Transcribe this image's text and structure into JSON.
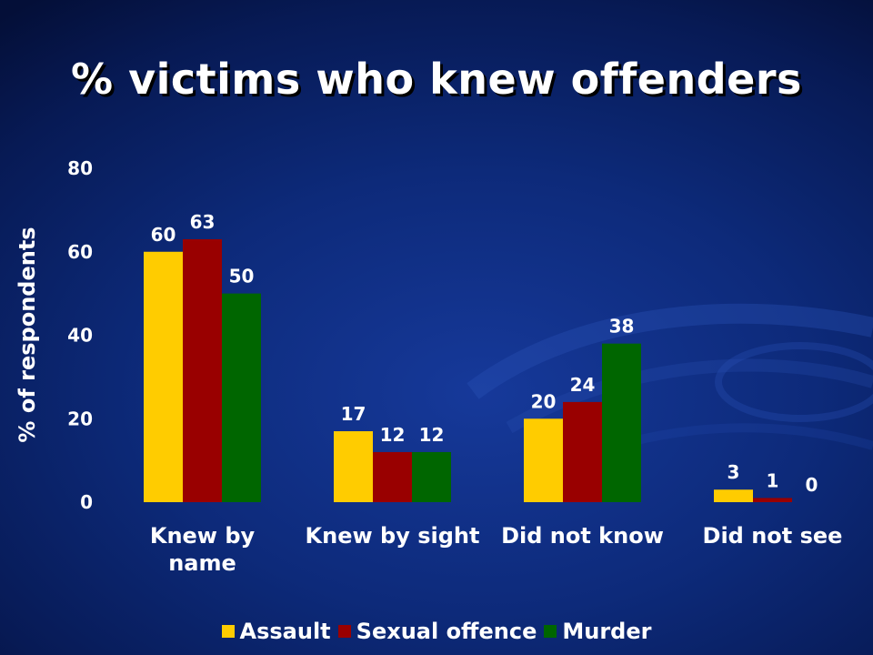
{
  "title": "% victims who knew offenders",
  "colors": {
    "background": "#0d2a7a",
    "text": "#ffffff",
    "assault": "#ffcc00",
    "sexual_offence": "#990000",
    "murder": "#006600"
  },
  "chart_data": {
    "type": "bar",
    "title": "% victims who knew offenders",
    "xlabel": "",
    "ylabel": "% of respondents",
    "ylim": [
      0,
      80
    ],
    "yticks": [
      0,
      20,
      40,
      60,
      80
    ],
    "grid": false,
    "legend_position": "bottom",
    "categories": [
      [
        "Knew by",
        "name"
      ],
      [
        "Knew by sight"
      ],
      [
        "Did not know"
      ],
      [
        "Did not see"
      ]
    ],
    "series": [
      {
        "name": "Assault",
        "color": "#ffcc00",
        "values": [
          60,
          17,
          20,
          3
        ]
      },
      {
        "name": "Sexual offence",
        "color": "#990000",
        "values": [
          63,
          12,
          24,
          1
        ]
      },
      {
        "name": "Murder",
        "color": "#006600",
        "values": [
          50,
          12,
          38,
          0
        ]
      }
    ]
  }
}
